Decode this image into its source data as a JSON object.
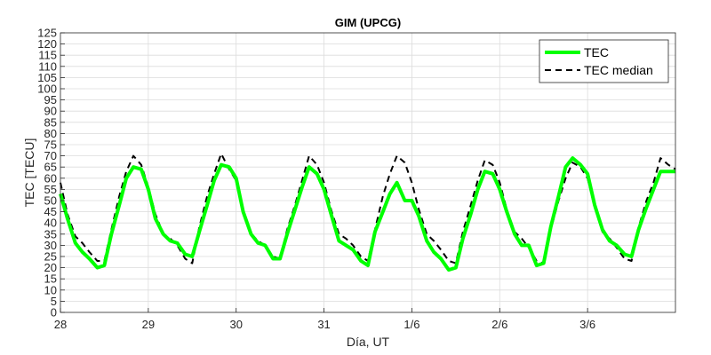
{
  "chart_data": {
    "type": "line",
    "title": "GIM (UPCG)",
    "xlabel": "Día, UT",
    "ylabel": "TEC [TECU]",
    "xlim": [
      0,
      7.0
    ],
    "ylim": [
      0,
      125
    ],
    "ytick_step": 5,
    "xticks": [
      {
        "value": 0,
        "label": "28"
      },
      {
        "value": 1,
        "label": "29"
      },
      {
        "value": 2,
        "label": "30"
      },
      {
        "value": 3,
        "label": "31"
      },
      {
        "value": 4,
        "label": "1/6"
      },
      {
        "value": 5,
        "label": "2/6"
      },
      {
        "value": 6,
        "label": "3/6"
      }
    ],
    "grid": true,
    "legend_position": "top-right",
    "series": [
      {
        "name": "TEC",
        "color": "#00ff00",
        "style": "solid",
        "x": [
          0.0,
          0.08,
          0.17,
          0.25,
          0.33,
          0.42,
          0.5,
          0.58,
          0.67,
          0.75,
          0.83,
          0.92,
          1.0,
          1.08,
          1.17,
          1.25,
          1.33,
          1.42,
          1.5,
          1.58,
          1.67,
          1.75,
          1.83,
          1.92,
          2.0,
          2.08,
          2.17,
          2.25,
          2.33,
          2.42,
          2.5,
          2.58,
          2.67,
          2.75,
          2.83,
          2.92,
          3.0,
          3.08,
          3.17,
          3.25,
          3.33,
          3.42,
          3.5,
          3.58,
          3.67,
          3.75,
          3.83,
          3.92,
          4.0,
          4.08,
          4.17,
          4.25,
          4.33,
          4.42,
          4.5,
          4.58,
          4.67,
          4.75,
          4.83,
          4.92,
          5.0,
          5.08,
          5.17,
          5.25,
          5.33,
          5.42,
          5.5,
          5.58,
          5.67,
          5.75,
          5.83,
          5.92,
          6.0,
          6.08,
          6.17,
          6.25,
          6.33,
          6.42,
          6.5,
          6.58,
          6.67,
          6.75,
          6.83,
          6.92,
          7.0
        ],
        "values": [
          53,
          42,
          31,
          27,
          24,
          20,
          21,
          35,
          48,
          60,
          65,
          64,
          55,
          42,
          35,
          32,
          31,
          26,
          25,
          36,
          48,
          59,
          66,
          65,
          60,
          45,
          35,
          31,
          30,
          24,
          24,
          35,
          46,
          56,
          65,
          62,
          55,
          44,
          32,
          30,
          28,
          23,
          21,
          36,
          45,
          53,
          58,
          50,
          50,
          43,
          32,
          27,
          24,
          19,
          20,
          33,
          44,
          55,
          63,
          62,
          55,
          45,
          35,
          30,
          30,
          21,
          22,
          38,
          52,
          65,
          69,
          66,
          62,
          48,
          37,
          32,
          30,
          26,
          25,
          37,
          47,
          55,
          63,
          63,
          63
        ],
        "y_in_chart_units": true
      },
      {
        "name": "TEC median",
        "color": "#000000",
        "style": "dash",
        "x": [
          0.0,
          0.08,
          0.17,
          0.25,
          0.33,
          0.42,
          0.5,
          0.58,
          0.67,
          0.75,
          0.83,
          0.92,
          1.0,
          1.08,
          1.17,
          1.25,
          1.33,
          1.42,
          1.5,
          1.58,
          1.67,
          1.75,
          1.83,
          1.92,
          2.0,
          2.08,
          2.17,
          2.25,
          2.33,
          2.42,
          2.5,
          2.58,
          2.67,
          2.75,
          2.83,
          2.92,
          3.0,
          3.08,
          3.17,
          3.25,
          3.33,
          3.42,
          3.5,
          3.58,
          3.67,
          3.75,
          3.83,
          3.92,
          4.0,
          4.08,
          4.17,
          4.25,
          4.33,
          4.42,
          4.5,
          4.58,
          4.67,
          4.75,
          4.83,
          4.92,
          5.0,
          5.08,
          5.17,
          5.25,
          5.33,
          5.42,
          5.5,
          5.58,
          5.67,
          5.75,
          5.83,
          5.92,
          6.0,
          6.08,
          6.17,
          6.25,
          6.33,
          6.42,
          6.5,
          6.58,
          6.67,
          6.75,
          6.83,
          6.92,
          7.0
        ],
        "values": [
          58,
          44,
          34,
          31,
          27,
          23,
          23,
          37,
          52,
          63,
          70,
          66,
          56,
          44,
          35,
          33,
          30,
          24,
          22,
          38,
          52,
          62,
          71,
          64,
          59,
          46,
          35,
          32,
          30,
          25,
          24,
          37,
          48,
          59,
          70,
          66,
          58,
          46,
          35,
          33,
          30,
          25,
          23,
          37,
          52,
          62,
          70,
          67,
          58,
          46,
          35,
          32,
          28,
          23,
          22,
          36,
          48,
          59,
          68,
          66,
          58,
          46,
          36,
          33,
          29,
          23,
          22,
          37,
          50,
          60,
          67,
          65,
          60,
          47,
          36,
          33,
          29,
          24,
          23,
          38,
          50,
          58,
          69,
          66,
          64
        ],
        "y_in_chart_units": true
      }
    ]
  }
}
